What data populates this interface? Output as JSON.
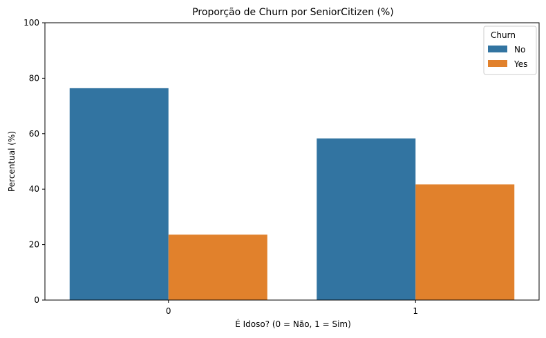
{
  "chart_data": {
    "type": "bar",
    "title": "Proporção de Churn por SeniorCitizen (%)",
    "xlabel": "É Idoso? (0 = Não, 1 = Sim)",
    "ylabel": "Percentual (%)",
    "categories": [
      "0",
      "1"
    ],
    "ylim": [
      0,
      100
    ],
    "yticks": [
      "0",
      "20",
      "40",
      "60",
      "80",
      "100"
    ],
    "grid": false,
    "legend": {
      "title": "Churn",
      "position": "top-right"
    },
    "series": [
      {
        "name": "No",
        "color": "#3274a1",
        "values": [
          76.4,
          58.3
        ]
      },
      {
        "name": "Yes",
        "color": "#e1812c",
        "values": [
          23.6,
          41.7
        ]
      }
    ]
  }
}
